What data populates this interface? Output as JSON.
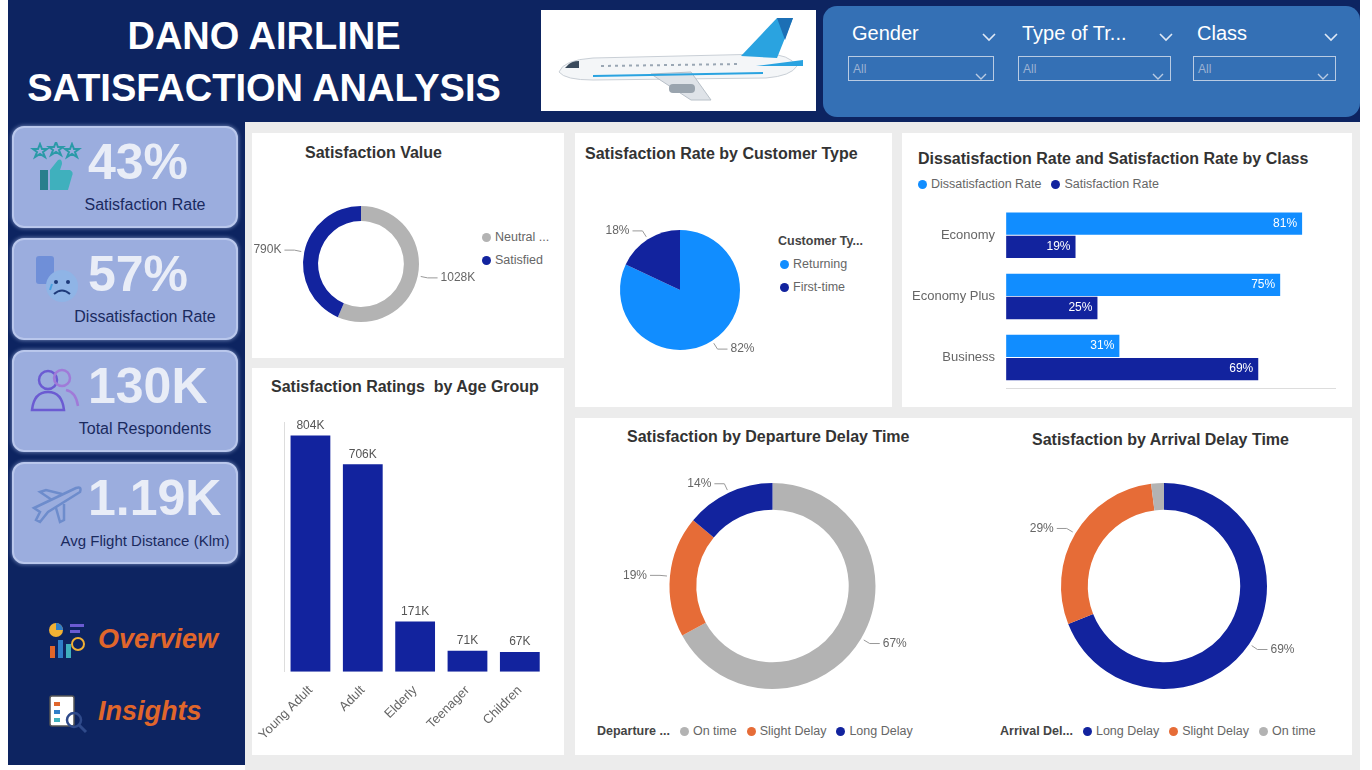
{
  "header": {
    "title_lines": [
      "DANO AIRLINE",
      "SATISFACTION ANALYSIS"
    ]
  },
  "filters": [
    {
      "label": "Gender",
      "selection": "All"
    },
    {
      "label": "Type of Tr...",
      "selection": "All"
    },
    {
      "label": "Class",
      "selection": "All"
    }
  ],
  "kpis": [
    {
      "value": "43%",
      "label": "Satisfaction Rate"
    },
    {
      "value": "57%",
      "label": "Dissatisfaction Rate"
    },
    {
      "value": "130K",
      "label": "Total Respondents"
    },
    {
      "value": "1.19K",
      "label": "Avg Flight Distance (Klm)"
    }
  ],
  "navigation": [
    "Overview",
    "Insights"
  ],
  "chart_data": [
    {
      "type": "doughnut",
      "title": "Satisfaction Value",
      "categories": [
        "Neutral ...",
        "Satisfied"
      ],
      "values": [
        1028000,
        790000
      ],
      "value_labels": [
        "1028K",
        "790K"
      ],
      "colors": [
        "#b3b3b3",
        "#12239e"
      ],
      "data_labels": true,
      "legend": "right"
    },
    {
      "type": "pie",
      "title": "Satisfaction Rate by Customer Type",
      "legend_title": "Customer Ty...",
      "categories": [
        "Returning",
        "First-time"
      ],
      "values": [
        82,
        18
      ],
      "value_labels": [
        "82%",
        "18%"
      ],
      "colors": [
        "#118dff",
        "#12239e"
      ],
      "data_labels": true,
      "legend": "right"
    },
    {
      "type": "bar",
      "orientation": "horizontal",
      "title": "Dissatisfaction Rate and Satisfaction Rate by Class",
      "categories": [
        "Economy",
        "Economy Plus",
        "Business"
      ],
      "series": [
        {
          "name": "Dissatisfaction Rate",
          "color": "#118dff",
          "values": [
            81,
            75,
            31
          ],
          "value_labels": [
            "81%",
            "75%",
            "31%"
          ]
        },
        {
          "name": "Satisfaction Rate",
          "color": "#12239e",
          "values": [
            19,
            25,
            69
          ],
          "value_labels": [
            "19%",
            "25%",
            "69%"
          ]
        }
      ],
      "xlim": [
        0,
        90
      ],
      "data_labels": true,
      "tick_labels": "y",
      "grid": false,
      "legend": "top left"
    },
    {
      "type": "bar",
      "title": "Satisfaction Ratings  by Age Group",
      "categories": [
        "Young Adult",
        "Adult",
        "Elderly",
        "Teenager",
        "Children"
      ],
      "values": [
        804000,
        706000,
        171000,
        71000,
        67000
      ],
      "value_labels": [
        "804K",
        "706K",
        "171K",
        "71K",
        "67K"
      ],
      "color": "#12239e",
      "ylim": [
        0,
        850000
      ],
      "data_labels": true,
      "tick_labels": "x",
      "grid": false
    },
    {
      "type": "doughnut",
      "title": "Satisfaction by Departure Delay Time",
      "legend_title": "Departure ...",
      "categories": [
        "On time",
        "Slight Delay",
        "Long Delay"
      ],
      "values": [
        67,
        19,
        14
      ],
      "value_labels": [
        "67%",
        "19%",
        "14%"
      ],
      "colors": [
        "#b3b3b3",
        "#e66c37",
        "#12239e"
      ],
      "data_labels": true,
      "legend": "bottom"
    },
    {
      "type": "doughnut",
      "title": "Satisfaction by Arrival Delay Time",
      "legend_title": "Arrival Del...",
      "categories": [
        "Long Delay",
        "Slight Delay",
        "On time"
      ],
      "values": [
        69,
        29,
        2
      ],
      "value_labels": [
        "69%",
        "29%",
        null
      ],
      "colors": [
        "#12239e",
        "#e66c37",
        "#b3b3b3"
      ],
      "data_labels": true,
      "legend": "bottom"
    }
  ]
}
